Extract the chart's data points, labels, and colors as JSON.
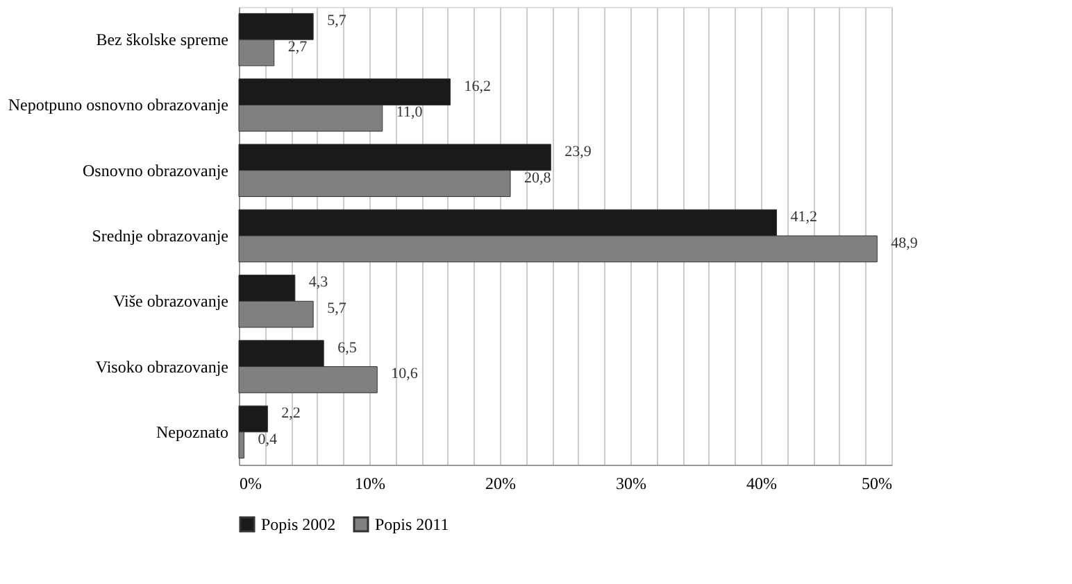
{
  "chart_data": {
    "type": "bar",
    "orientation": "horizontal",
    "categories": [
      "Bez školske spreme",
      "Nepotpuno osnovno obrazovanje",
      "Osnovno obrazovanje",
      "Srednje obrazovanje",
      "Više obrazovanje",
      "Visoko obrazovanje",
      "Nepoznato"
    ],
    "series": [
      {
        "name": "Popis 2002",
        "color": "#1a1a1a",
        "values": [
          5.7,
          16.2,
          23.9,
          41.2,
          4.3,
          6.5,
          2.2
        ],
        "value_labels": [
          "5,7",
          "16,2",
          "23,9",
          "41,2",
          "4,3",
          "6,5",
          "2,2"
        ]
      },
      {
        "name": "Popis 2011",
        "color": "#808080",
        "values": [
          2.7,
          11.0,
          20.8,
          48.9,
          5.7,
          10.6,
          0.4
        ],
        "value_labels": [
          "2,7",
          "11,0",
          "20,8",
          "48,9",
          "5,7",
          "10,6",
          "0,4"
        ]
      }
    ],
    "xlim": [
      0,
      50
    ],
    "xticks": [
      {
        "value": 0,
        "label": "0%"
      },
      {
        "value": 2,
        "label": null
      },
      {
        "value": 4,
        "label": null
      },
      {
        "value": 6,
        "label": null
      },
      {
        "value": 8,
        "label": null
      },
      {
        "value": 10,
        "label": "10%"
      },
      {
        "value": 12,
        "label": null
      },
      {
        "value": 14,
        "label": null
      },
      {
        "value": 16,
        "label": null
      },
      {
        "value": 18,
        "label": null
      },
      {
        "value": 20,
        "label": "20%"
      },
      {
        "value": 22,
        "label": null
      },
      {
        "value": 24,
        "label": null
      },
      {
        "value": 26,
        "label": null
      },
      {
        "value": 28,
        "label": null
      },
      {
        "value": 30,
        "label": "30%"
      },
      {
        "value": 32,
        "label": null
      },
      {
        "value": 34,
        "label": null
      },
      {
        "value": 36,
        "label": null
      },
      {
        "value": 38,
        "label": null
      },
      {
        "value": 40,
        "label": "40%"
      },
      {
        "value": 42,
        "label": null
      },
      {
        "value": 44,
        "label": null
      },
      {
        "value": 46,
        "label": null
      },
      {
        "value": 48,
        "label": null
      },
      {
        "value": 50,
        "label": "50%"
      }
    ],
    "grid": "x",
    "legend": "bottom"
  }
}
